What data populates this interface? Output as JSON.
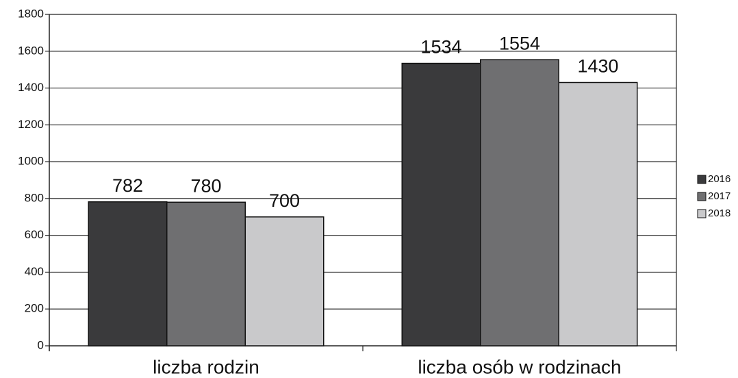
{
  "chart_data": {
    "type": "bar",
    "categories": [
      "liczba rodzin",
      "liczba osób w rodzinach"
    ],
    "series": [
      {
        "name": "2016",
        "color": "#3a3a3c",
        "values": [
          782,
          1534
        ]
      },
      {
        "name": "2017",
        "color": "#6f6f71",
        "values": [
          780,
          1554
        ]
      },
      {
        "name": "2018",
        "color": "#c9c9cb",
        "values": [
          700,
          1430
        ]
      }
    ],
    "ylim": [
      0,
      1800
    ],
    "yticks": [
      0,
      200,
      400,
      600,
      800,
      1000,
      1200,
      1400,
      1600,
      1800
    ],
    "grid": true,
    "legend": "right"
  }
}
